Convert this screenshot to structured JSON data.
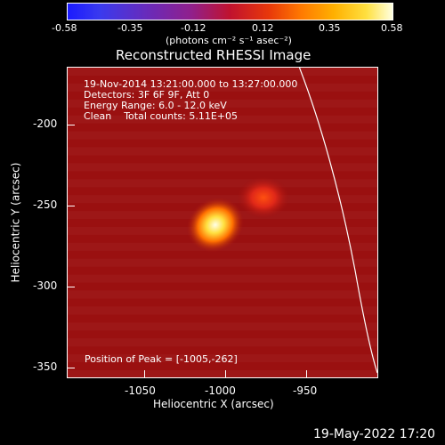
{
  "colorbar": {
    "ticks": [
      "-0.58",
      "-0.35",
      "-0.12",
      "0.12",
      "0.35",
      "0.58"
    ],
    "unit_label": "(photons cm⁻² s⁻¹ asec⁻²)",
    "colors": [
      "#1a1aff",
      "#90208c",
      "#c0122e",
      "#ff7a00",
      "#ffe040",
      "#ffffe0"
    ]
  },
  "image": {
    "title": "Reconstructed RHESSI Image",
    "info_lines": [
      "19-Nov-2014 13:21:00.000 to 13:27:00.000",
      "Detectors: 3F 6F 9F, Att 0",
      "Energy Range: 6.0 - 12.0 keV",
      "Clean    Total counts: 5.11E+05"
    ],
    "peak_text": "Position of Peak = [-1005,-262]",
    "x_label": "Heliocentric X (arcsec)",
    "y_label": "Heliocentric Y (arcsec)",
    "x_ticks": [
      "-1050",
      "-1000",
      "-950"
    ],
    "y_ticks": [
      "-200",
      "-250",
      "-300",
      "-350"
    ],
    "xlim": [
      -1097,
      -904
    ],
    "ylim": [
      -357,
      -164
    ],
    "sources": [
      {
        "x": -1005,
        "y": -262,
        "intensity": 1.0
      },
      {
        "x": -975,
        "y": -245,
        "intensity": 0.55
      }
    ]
  },
  "footer": {
    "timestamp": "19-May-2022 17:20"
  }
}
